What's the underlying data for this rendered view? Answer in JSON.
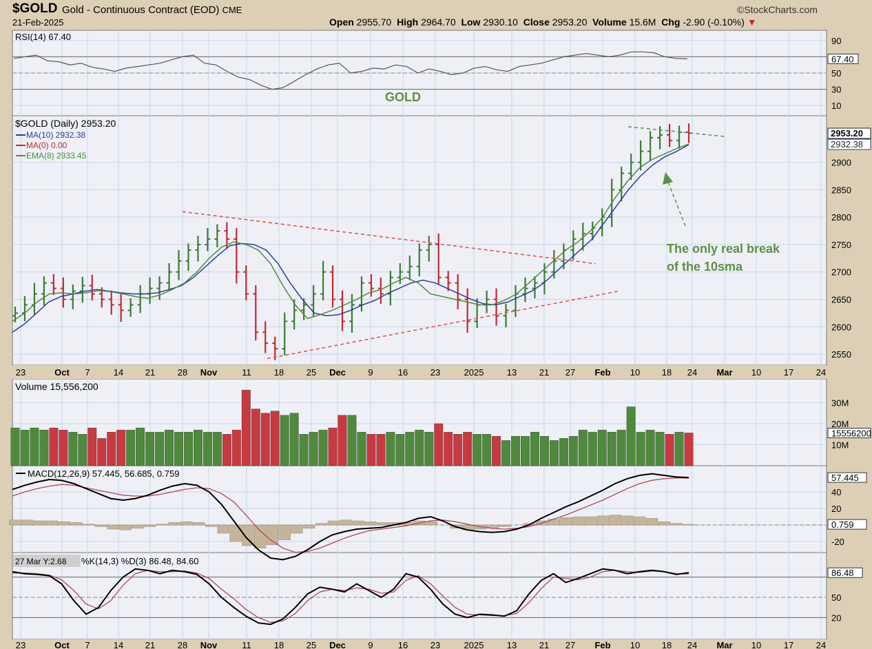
{
  "header": {
    "ticker": "$GOLD",
    "description": "Gold - Continuous Contract (EOD)",
    "exchange": "CME",
    "date": "21-Feb-2025",
    "brand": "©StockCharts.com",
    "quote": {
      "open_label": "Open",
      "open": "2955.70",
      "high_label": "High",
      "high": "2964.70",
      "low_label": "Low",
      "low": "2930.10",
      "close_label": "Close",
      "close": "2953.20",
      "volume_label": "Volume",
      "volume": "15.6M",
      "chg_label": "Chg",
      "chg": "-2.90 (-0.10%)"
    }
  },
  "colors": {
    "up": "#3c7a35",
    "down": "#c4282f",
    "ma10": "#2a3c9c",
    "ema8": "#4e8a3e",
    "trend": "#e05555",
    "annotation": "#5e8f45",
    "panel_bg": "#eef0f6",
    "grid": "#c5d6ea",
    "page_bg": "#dccfb6"
  },
  "chart_data": [
    {
      "type": "line",
      "panel": "rsi",
      "title": "RSI(14) 67.40",
      "ylim": [
        0,
        100
      ],
      "ticks": [
        "90",
        "67.40",
        "50",
        "30",
        "10"
      ],
      "overlay_label": "GOLD",
      "series": [
        {
          "name": "RSI(14)",
          "values": [
            68,
            70,
            72,
            65,
            64,
            60,
            62,
            57,
            55,
            52,
            56,
            58,
            60,
            62,
            66,
            70,
            72,
            62,
            60,
            52,
            45,
            42,
            35,
            30,
            32,
            40,
            48,
            55,
            60,
            62,
            50,
            52,
            56,
            55,
            60,
            58,
            50,
            55,
            52,
            48,
            50,
            56,
            58,
            54,
            52,
            58,
            60,
            62,
            66,
            70,
            72,
            74,
            72,
            70,
            72,
            76,
            76,
            75,
            70,
            68,
            67.4
          ]
        }
      ]
    },
    {
      "type": "ohlc",
      "panel": "price",
      "title": "$GOLD (Daily) 2953.20",
      "ylim": [
        2530,
        2985
      ],
      "ticks": [
        2550,
        2600,
        2650,
        2700,
        2750,
        2800,
        2850,
        2900
      ],
      "last_value_labels": [
        "2953.20",
        "2932.38"
      ],
      "legend": [
        "MA(10) 2932.38",
        "MA(0) 0.00",
        "EMA(8) 2933.45"
      ],
      "x_ticks": [
        "23",
        "Oct",
        "7",
        "14",
        "21",
        "28",
        "Nov",
        "11",
        "18",
        "25",
        "Dec",
        "9",
        "16",
        "23",
        "2025",
        "13",
        "21",
        "27",
        "Feb",
        "10",
        "18",
        "24",
        "Mar",
        "10",
        "17",
        "24"
      ],
      "close": [
        2625,
        2640,
        2660,
        2680,
        2670,
        2650,
        2665,
        2675,
        2660,
        2650,
        2640,
        2630,
        2640,
        2660,
        2670,
        2680,
        2700,
        2720,
        2740,
        2750,
        2760,
        2775,
        2760,
        2700,
        2660,
        2590,
        2570,
        2560,
        2610,
        2630,
        2640,
        2660,
        2700,
        2650,
        2610,
        2640,
        2680,
        2670,
        2660,
        2690,
        2700,
        2710,
        2740,
        2750,
        2690,
        2680,
        2650,
        2610,
        2640,
        2650,
        2620,
        2630,
        2660,
        2670,
        2680,
        2700,
        2720,
        2740,
        2760,
        2770,
        2780,
        2800,
        2850,
        2880,
        2900,
        2920,
        2945,
        2950,
        2940,
        2955,
        2953.2
      ],
      "series": [
        {
          "name": "MA(10)",
          "values": [
            2590,
            2605,
            2625,
            2645,
            2655,
            2660,
            2665,
            2668,
            2665,
            2662,
            2660,
            2660,
            2662,
            2668,
            2675,
            2690,
            2710,
            2730,
            2748,
            2752,
            2750,
            2740,
            2715,
            2680,
            2650,
            2625,
            2620,
            2622,
            2630,
            2640,
            2648,
            2660,
            2670,
            2680,
            2685,
            2680,
            2670,
            2660,
            2650,
            2642,
            2640,
            2645,
            2655,
            2665,
            2680,
            2700,
            2720,
            2740,
            2760,
            2790,
            2820,
            2850,
            2875,
            2895,
            2910,
            2920,
            2932.38
          ]
        },
        {
          "name": "EMA(8)",
          "values": [
            2610,
            2625,
            2645,
            2660,
            2662,
            2660,
            2662,
            2666,
            2664,
            2660,
            2655,
            2652,
            2658,
            2668,
            2680,
            2700,
            2725,
            2745,
            2755,
            2750,
            2740,
            2715,
            2675,
            2640,
            2615,
            2622,
            2630,
            2640,
            2650,
            2662,
            2668,
            2680,
            2690,
            2680,
            2660,
            2655,
            2650,
            2645,
            2640,
            2640,
            2648,
            2660,
            2680,
            2700,
            2720,
            2740,
            2755,
            2775,
            2800,
            2835,
            2865,
            2890,
            2905,
            2915,
            2925,
            2933.45
          ]
        }
      ],
      "annotation": "The only real break\nof the 10sma"
    },
    {
      "type": "bar",
      "panel": "volume",
      "title": "Volume 15,556,200",
      "ticks": [
        "30M",
        "20M",
        "15556200",
        "10M"
      ],
      "values": [
        18,
        17,
        18,
        17,
        18,
        17,
        16,
        15,
        18,
        13,
        16,
        17,
        17,
        18,
        16,
        16,
        17,
        16,
        16,
        17,
        16,
        16,
        15,
        17,
        36,
        27,
        25,
        26,
        24,
        25,
        15,
        16,
        17,
        18,
        24,
        24,
        16,
        15,
        15,
        16,
        15,
        16,
        17,
        16,
        20,
        16,
        15,
        16,
        15,
        15,
        14,
        12,
        14,
        14,
        16,
        14,
        12,
        13,
        14,
        17,
        16,
        17,
        16,
        17,
        28,
        16,
        17,
        16,
        15,
        16,
        15.6
      ]
    },
    {
      "type": "line",
      "panel": "macd",
      "title": "MACD(12,26,9) 57.445, 56.685, 0.759",
      "ticks": [
        "57.445",
        "40",
        "20",
        "0.759",
        "-20"
      ],
      "series": [
        {
          "name": "MACD",
          "values": [
            43,
            48,
            52,
            55,
            54,
            50,
            44,
            38,
            32,
            30,
            32,
            36,
            42,
            47,
            50,
            48,
            40,
            25,
            5,
            -15,
            -30,
            -40,
            -42,
            -38,
            -30,
            -20,
            -12,
            -8,
            -5,
            -4,
            -3,
            0,
            3,
            8,
            10,
            5,
            -2,
            -6,
            -8,
            -9,
            -8,
            -5,
            0,
            8,
            15,
            22,
            28,
            35,
            42,
            50,
            56,
            60,
            62,
            60,
            58,
            57.445
          ]
        },
        {
          "name": "Signal",
          "values": [
            35,
            40,
            44,
            47,
            49,
            48,
            45,
            42,
            39,
            36,
            35,
            35,
            37,
            40,
            43,
            45,
            44,
            38,
            28,
            12,
            -5,
            -18,
            -28,
            -33,
            -32,
            -28,
            -22,
            -16,
            -11,
            -7,
            -5,
            -3,
            -1,
            2,
            5,
            6,
            4,
            1,
            -2,
            -4,
            -5,
            -4,
            -2,
            2,
            7,
            12,
            18,
            24,
            30,
            37,
            44,
            50,
            54,
            56,
            57,
            56.685
          ]
        }
      ],
      "histogram": [
        6,
        6,
        5,
        5,
        4,
        3,
        1,
        -2,
        -5,
        -6,
        -4,
        -2,
        1,
        3,
        4,
        3,
        -2,
        -10,
        -20,
        -25,
        -28,
        -24,
        -18,
        -10,
        -4,
        2,
        5,
        6,
        5,
        4,
        3,
        3,
        3,
        5,
        4,
        0,
        -4,
        -6,
        -5,
        -4,
        -2,
        0,
        2,
        5,
        7,
        9,
        10,
        10,
        11,
        12,
        11,
        10,
        8,
        4,
        2,
        0.759
      ]
    },
    {
      "type": "line",
      "panel": "stochastic",
      "title": "%K(14,3) %D(3) 86.48, 84.60",
      "crosshair_label": "27 Mar Y:2.68",
      "ticks": [
        "86.48",
        "50",
        "20"
      ],
      "series": [
        {
          "name": "%K",
          "values": [
            88,
            85,
            84,
            82,
            70,
            45,
            25,
            35,
            60,
            80,
            92,
            90,
            85,
            90,
            88,
            84,
            70,
            50,
            35,
            22,
            12,
            10,
            18,
            35,
            55,
            65,
            62,
            58,
            70,
            60,
            50,
            62,
            85,
            80,
            62,
            40,
            25,
            20,
            25,
            24,
            22,
            30,
            55,
            75,
            85,
            72,
            78,
            85,
            92,
            90,
            85,
            88,
            90,
            88,
            84,
            86.48
          ]
        },
        {
          "name": "%D",
          "values": [
            86,
            86,
            85,
            83,
            76,
            60,
            40,
            33,
            45,
            68,
            85,
            90,
            88,
            88,
            89,
            86,
            78,
            62,
            48,
            32,
            20,
            13,
            15,
            26,
            45,
            58,
            62,
            60,
            64,
            62,
            56,
            58,
            75,
            82,
            70,
            52,
            35,
            25,
            24,
            23,
            23,
            26,
            42,
            63,
            80,
            78,
            76,
            80,
            88,
            90,
            88,
            87,
            89,
            88,
            85,
            84.6
          ]
        }
      ],
      "x_ticks": [
        "23",
        "Oct",
        "7",
        "14",
        "21",
        "28",
        "Nov",
        "11",
        "18",
        "25",
        "Dec",
        "9",
        "16",
        "23",
        "2025",
        "13",
        "21",
        "27",
        "Feb",
        "10",
        "18",
        "24",
        "Mar",
        "10",
        "17",
        "24"
      ]
    }
  ]
}
